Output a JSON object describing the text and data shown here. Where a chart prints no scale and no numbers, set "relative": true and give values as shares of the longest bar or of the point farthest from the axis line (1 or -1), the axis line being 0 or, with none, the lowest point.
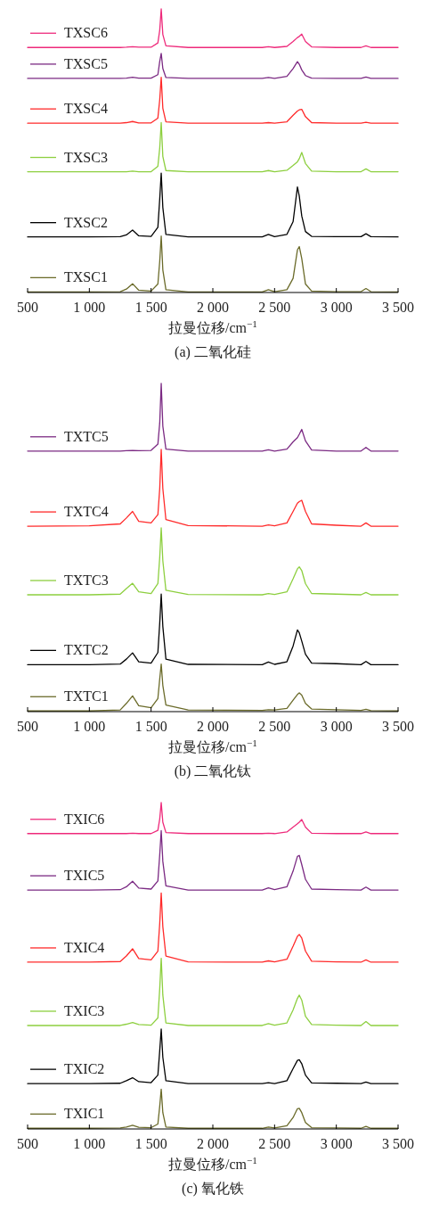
{
  "chart_data": [
    {
      "type": "line",
      "relative": true,
      "legend": "left",
      "title": "(a) 二氧化硅",
      "xlabel": "拉曼位移/cm$^{−1}$",
      "xlim": [
        500,
        3500
      ],
      "xticks": [
        {
          "value": 500,
          "label": "500"
        },
        {
          "value": 1000,
          "label": "1 000"
        },
        {
          "value": 1500,
          "label": "1 500"
        },
        {
          "value": 2000,
          "label": "2 000"
        },
        {
          "value": 2500,
          "label": "2 500"
        },
        {
          "value": 3000,
          "label": "3 000"
        },
        {
          "value": 3500,
          "label": "3 500"
        }
      ],
      "x": [
        500,
        1000,
        1250,
        1300,
        1350,
        1400,
        1500,
        1555,
        1570,
        1582,
        1595,
        1620,
        1800,
        2400,
        2450,
        2500,
        2600,
        2650,
        2685,
        2700,
        2720,
        2750,
        2800,
        3000,
        3200,
        3240,
        3280,
        3500
      ],
      "series": [
        {
          "name": "TXSC6",
          "color": "#ee2a7b",
          "values": [
            0.864,
            0.864,
            0.864,
            0.865,
            0.867,
            0.865,
            0.865,
            0.88,
            0.925,
            1.0,
            0.91,
            0.87,
            0.864,
            0.864,
            0.867,
            0.864,
            0.868,
            0.885,
            0.899,
            0.903,
            0.911,
            0.885,
            0.866,
            0.864,
            0.864,
            0.87,
            0.864,
            0.864
          ]
        },
        {
          "name": "TXSC5",
          "color": "#7b2a83",
          "values": [
            0.755,
            0.755,
            0.755,
            0.756,
            0.759,
            0.756,
            0.756,
            0.768,
            0.815,
            0.843,
            0.79,
            0.758,
            0.755,
            0.755,
            0.758,
            0.755,
            0.762,
            0.79,
            0.814,
            0.805,
            0.785,
            0.765,
            0.756,
            0.755,
            0.755,
            0.76,
            0.755,
            0.755
          ]
        },
        {
          "name": "TXSC4",
          "color": "#ff2a2a",
          "values": [
            0.597,
            0.597,
            0.597,
            0.599,
            0.603,
            0.598,
            0.598,
            0.615,
            0.68,
            0.759,
            0.65,
            0.602,
            0.597,
            0.597,
            0.599,
            0.597,
            0.602,
            0.625,
            0.64,
            0.644,
            0.646,
            0.62,
            0.599,
            0.597,
            0.597,
            0.6,
            0.597,
            0.597
          ]
        },
        {
          "name": "TXSC3",
          "color": "#8dcf3f",
          "values": [
            0.426,
            0.426,
            0.426,
            0.426,
            0.428,
            0.426,
            0.426,
            0.445,
            0.51,
            0.599,
            0.48,
            0.43,
            0.426,
            0.426,
            0.43,
            0.426,
            0.431,
            0.448,
            0.461,
            0.472,
            0.494,
            0.455,
            0.428,
            0.426,
            0.426,
            0.436,
            0.426,
            0.426
          ]
        },
        {
          "name": "TXSC2",
          "color": "#000000",
          "values": [
            0.196,
            0.196,
            0.197,
            0.203,
            0.22,
            0.2,
            0.198,
            0.23,
            0.33,
            0.421,
            0.3,
            0.205,
            0.196,
            0.196,
            0.205,
            0.197,
            0.205,
            0.25,
            0.372,
            0.34,
            0.27,
            0.215,
            0.198,
            0.197,
            0.197,
            0.207,
            0.197,
            0.196
          ]
        },
        {
          "name": "TXSC1",
          "color": "#6b6b2a",
          "values": [
            0.002,
            0.002,
            0.003,
            0.012,
            0.031,
            0.008,
            0.005,
            0.03,
            0.11,
            0.199,
            0.08,
            0.01,
            0.002,
            0.002,
            0.01,
            0.003,
            0.01,
            0.05,
            0.15,
            0.162,
            0.12,
            0.03,
            0.005,
            0.003,
            0.003,
            0.014,
            0.003,
            0.002
          ]
        }
      ]
    },
    {
      "type": "line",
      "relative": true,
      "legend": "left",
      "title": "(b) 二氧化钛",
      "xlabel": "拉曼位移/cm$^{−1}$",
      "xlim": [
        500,
        3500
      ],
      "xticks": [
        {
          "value": 500,
          "label": "500"
        },
        {
          "value": 1000,
          "label": "1 000"
        },
        {
          "value": 1500,
          "label": "1 500"
        },
        {
          "value": 2000,
          "label": "2 000"
        },
        {
          "value": 2500,
          "label": "2 500"
        },
        {
          "value": 3000,
          "label": "3 000"
        },
        {
          "value": 3500,
          "label": "3 500"
        }
      ],
      "x": [
        500,
        1000,
        1250,
        1300,
        1350,
        1400,
        1500,
        1555,
        1570,
        1582,
        1595,
        1620,
        1800,
        2400,
        2450,
        2500,
        2600,
        2650,
        2685,
        2700,
        2720,
        2750,
        2800,
        3000,
        3200,
        3240,
        3280,
        3500
      ],
      "series": [
        {
          "name": "TXTC5",
          "color": "#7b2a83",
          "values": [
            0.794,
            0.794,
            0.794,
            0.795,
            0.796,
            0.795,
            0.796,
            0.815,
            0.88,
            1.0,
            0.87,
            0.8,
            0.794,
            0.794,
            0.798,
            0.794,
            0.8,
            0.822,
            0.835,
            0.845,
            0.86,
            0.825,
            0.797,
            0.794,
            0.794,
            0.805,
            0.794,
            0.794
          ]
        },
        {
          "name": "TXTC4",
          "color": "#ff2a2a",
          "values": [
            0.565,
            0.566,
            0.572,
            0.59,
            0.61,
            0.58,
            0.575,
            0.6,
            0.68,
            0.799,
            0.68,
            0.585,
            0.567,
            0.565,
            0.569,
            0.566,
            0.575,
            0.61,
            0.635,
            0.64,
            0.644,
            0.61,
            0.572,
            0.568,
            0.565,
            0.575,
            0.565,
            0.565
          ]
        },
        {
          "name": "TXTC3",
          "color": "#8dcf3f",
          "values": [
            0.356,
            0.356,
            0.358,
            0.375,
            0.391,
            0.365,
            0.36,
            0.39,
            0.47,
            0.56,
            0.46,
            0.37,
            0.357,
            0.356,
            0.36,
            0.357,
            0.365,
            0.405,
            0.435,
            0.441,
            0.43,
            0.39,
            0.36,
            0.358,
            0.356,
            0.363,
            0.356,
            0.356
          ]
        },
        {
          "name": "TXTC2",
          "color": "#000000",
          "values": [
            0.143,
            0.143,
            0.145,
            0.16,
            0.179,
            0.152,
            0.148,
            0.18,
            0.27,
            0.358,
            0.26,
            0.16,
            0.144,
            0.143,
            0.151,
            0.144,
            0.152,
            0.2,
            0.249,
            0.24,
            0.215,
            0.175,
            0.148,
            0.146,
            0.143,
            0.153,
            0.143,
            0.143
          ]
        },
        {
          "name": "TXTC1",
          "color": "#6b6b2a",
          "values": [
            0.002,
            0.002,
            0.005,
            0.025,
            0.048,
            0.018,
            0.012,
            0.04,
            0.1,
            0.145,
            0.08,
            0.02,
            0.005,
            0.004,
            0.006,
            0.005,
            0.01,
            0.035,
            0.052,
            0.057,
            0.05,
            0.025,
            0.008,
            0.006,
            0.004,
            0.007,
            0.003,
            0.002
          ]
        }
      ]
    },
    {
      "type": "line",
      "relative": true,
      "legend": "left",
      "title": "(c) 氧化铁",
      "xlabel": "拉曼位移/cm$^{−1}$",
      "xlim": [
        500,
        3500
      ],
      "xticks": [
        {
          "value": 500,
          "label": "500"
        },
        {
          "value": 1000,
          "label": "1 000"
        },
        {
          "value": 1500,
          "label": "1 500"
        },
        {
          "value": 2000,
          "label": "2 000"
        },
        {
          "value": 2500,
          "label": "2 500"
        },
        {
          "value": 3000,
          "label": "3 000"
        },
        {
          "value": 3500,
          "label": "3 500"
        }
      ],
      "x": [
        500,
        1000,
        1250,
        1300,
        1350,
        1400,
        1500,
        1555,
        1570,
        1582,
        1595,
        1620,
        1800,
        2400,
        2450,
        2500,
        2600,
        2650,
        2685,
        2700,
        2720,
        2750,
        2800,
        3000,
        3200,
        3240,
        3280,
        3500
      ],
      "series": [
        {
          "name": "TXIC6",
          "color": "#ee2a7b",
          "values": [
            0.905,
            0.905,
            0.905,
            0.905,
            0.906,
            0.905,
            0.905,
            0.915,
            0.95,
            1.0,
            0.94,
            0.908,
            0.905,
            0.905,
            0.906,
            0.905,
            0.91,
            0.925,
            0.935,
            0.94,
            0.948,
            0.925,
            0.906,
            0.905,
            0.905,
            0.91,
            0.905,
            0.905
          ]
        },
        {
          "name": "TXIC5",
          "color": "#7b2a83",
          "values": [
            0.732,
            0.732,
            0.733,
            0.742,
            0.759,
            0.738,
            0.735,
            0.76,
            0.84,
            0.914,
            0.82,
            0.745,
            0.732,
            0.732,
            0.739,
            0.733,
            0.742,
            0.79,
            0.835,
            0.838,
            0.81,
            0.765,
            0.735,
            0.733,
            0.732,
            0.741,
            0.732,
            0.732
          ]
        },
        {
          "name": "TXIC4",
          "color": "#ff2a2a",
          "values": [
            0.511,
            0.511,
            0.513,
            0.53,
            0.552,
            0.522,
            0.518,
            0.545,
            0.63,
            0.723,
            0.62,
            0.53,
            0.512,
            0.511,
            0.515,
            0.512,
            0.52,
            0.56,
            0.59,
            0.596,
            0.585,
            0.545,
            0.514,
            0.512,
            0.511,
            0.518,
            0.511,
            0.511
          ]
        },
        {
          "name": "TXIC3",
          "color": "#8dcf3f",
          "values": [
            0.317,
            0.317,
            0.317,
            0.321,
            0.326,
            0.32,
            0.318,
            0.34,
            0.43,
            0.523,
            0.41,
            0.325,
            0.317,
            0.317,
            0.323,
            0.318,
            0.325,
            0.365,
            0.4,
            0.41,
            0.395,
            0.345,
            0.32,
            0.318,
            0.317,
            0.329,
            0.317,
            0.317
          ]
        },
        {
          "name": "TXIC2",
          "color": "#000000",
          "values": [
            0.139,
            0.139,
            0.14,
            0.148,
            0.157,
            0.145,
            0.142,
            0.165,
            0.24,
            0.306,
            0.22,
            0.148,
            0.139,
            0.139,
            0.142,
            0.139,
            0.148,
            0.185,
            0.21,
            0.212,
            0.2,
            0.165,
            0.141,
            0.14,
            0.139,
            0.144,
            0.139,
            0.139
          ]
        },
        {
          "name": "TXIC1",
          "color": "#6b6b2a",
          "values": [
            0.002,
            0.002,
            0.003,
            0.006,
            0.011,
            0.005,
            0.004,
            0.015,
            0.07,
            0.122,
            0.05,
            0.006,
            0.002,
            0.002,
            0.006,
            0.003,
            0.01,
            0.035,
            0.062,
            0.063,
            0.05,
            0.02,
            0.004,
            0.003,
            0.002,
            0.008,
            0.002,
            0.002
          ]
        }
      ]
    }
  ]
}
